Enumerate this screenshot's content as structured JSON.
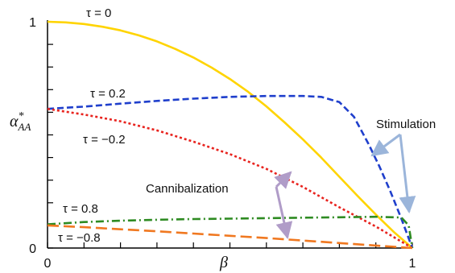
{
  "chart_data": {
    "type": "line",
    "title": "",
    "xlabel": "β",
    "ylabel": "α*AA",
    "ylabel_parts": {
      "base": "α",
      "sup": "*",
      "sub": "AA"
    },
    "xlim": [
      0,
      1
    ],
    "ylim": [
      0,
      1
    ],
    "x_ticks": [
      {
        "value": 0,
        "label": "0"
      },
      {
        "value": 1,
        "label": "1"
      }
    ],
    "y_ticks": [
      {
        "value": 0,
        "label": "0"
      },
      {
        "value": 1,
        "label": "1"
      }
    ],
    "grid": false,
    "series": [
      {
        "name": "τ = 0",
        "color": "#FFD400",
        "style": "solid",
        "x": [
          0,
          0.05,
          0.1,
          0.15,
          0.2,
          0.25,
          0.3,
          0.35,
          0.4,
          0.45,
          0.5,
          0.55,
          0.6,
          0.65,
          0.7,
          0.75,
          0.8,
          0.85,
          0.9,
          0.95,
          1
        ],
        "y": [
          1.0,
          0.997,
          0.99,
          0.978,
          0.962,
          0.94,
          0.913,
          0.88,
          0.842,
          0.797,
          0.747,
          0.69,
          0.626,
          0.555,
          0.48,
          0.4,
          0.315,
          0.23,
          0.148,
          0.07,
          0.0
        ]
      },
      {
        "name": "τ = 0.2",
        "color": "#1F3FCC",
        "style": "dashed",
        "x": [
          0,
          0.1,
          0.2,
          0.3,
          0.4,
          0.5,
          0.6,
          0.7,
          0.75,
          0.8,
          0.84,
          0.88,
          0.91,
          0.94,
          0.97,
          1
        ],
        "y": [
          0.615,
          0.625,
          0.638,
          0.65,
          0.66,
          0.668,
          0.672,
          0.672,
          0.668,
          0.645,
          0.58,
          0.46,
          0.36,
          0.25,
          0.13,
          0.0
        ]
      },
      {
        "name": "τ = −0.2",
        "color": "#E8231E",
        "style": "dotted",
        "x": [
          0,
          0.1,
          0.2,
          0.3,
          0.4,
          0.5,
          0.6,
          0.7,
          0.8,
          0.9,
          1
        ],
        "y": [
          0.615,
          0.59,
          0.56,
          0.52,
          0.47,
          0.415,
          0.35,
          0.27,
          0.18,
          0.095,
          0.0
        ]
      },
      {
        "name": "τ = 0.8",
        "color": "#2E8B22",
        "style": "dashdot",
        "x": [
          0,
          0.1,
          0.2,
          0.3,
          0.4,
          0.5,
          0.6,
          0.7,
          0.8,
          0.9,
          0.97,
          0.99,
          1
        ],
        "y": [
          0.105,
          0.115,
          0.121,
          0.125,
          0.128,
          0.13,
          0.132,
          0.134,
          0.136,
          0.138,
          0.135,
          0.1,
          0.0
        ]
      },
      {
        "name": "τ = −0.8",
        "color": "#F07820",
        "style": "longdash",
        "x": [
          0,
          0.1,
          0.2,
          0.3,
          0.4,
          0.5,
          0.6,
          0.7,
          0.8,
          0.9,
          1
        ],
        "y": [
          0.1,
          0.092,
          0.083,
          0.074,
          0.064,
          0.054,
          0.044,
          0.033,
          0.022,
          0.011,
          0.0
        ]
      }
    ],
    "annotations": [
      {
        "text": "Stimulation",
        "color": "#9BB5DA"
      },
      {
        "text": "Cannibalization",
        "color": "#B09CC8"
      }
    ]
  }
}
